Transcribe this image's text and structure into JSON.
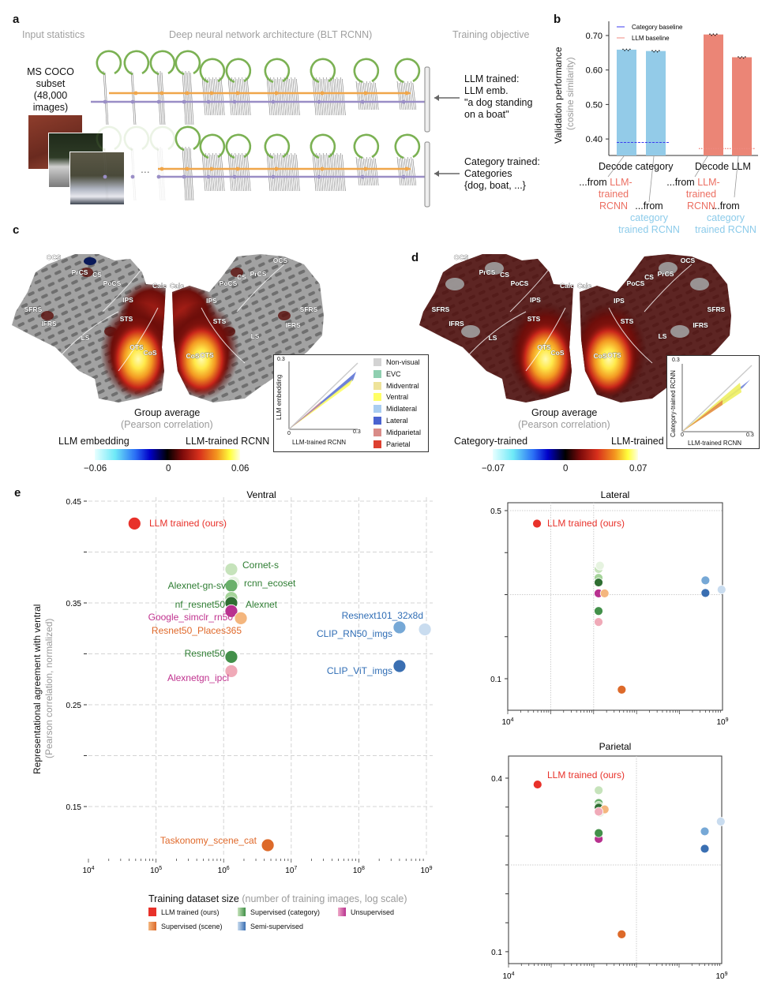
{
  "panel_labels": {
    "a": "a",
    "b": "b",
    "c": "c",
    "d": "d",
    "e": "e"
  },
  "panel_a": {
    "headers": [
      "Input statistics",
      "Deep neural network architecture (BLT RCNN)",
      "Training objective"
    ],
    "input_label": [
      "MS COCO",
      "subset",
      "(48,000",
      "images)"
    ],
    "ellipsis": "...",
    "objectives": [
      {
        "lines": [
          "LLM trained:",
          "LLM emb.",
          "\"a dog standing",
          "on a boat\""
        ]
      },
      {
        "lines": [
          "Category trained:",
          "Categories",
          "{dog, boat, ...}"
        ]
      }
    ],
    "colors": {
      "recurrent": "#7bb153",
      "topdown": "#f0a64a",
      "bottomup": "#9a8ec6"
    }
  },
  "panel_b": {
    "groups": [
      "Decode category",
      "Decode LLM"
    ],
    "annotations": [
      {
        "prefix": "...from",
        "lines": [
          "LLM-",
          "trained",
          "RCNN"
        ],
        "source": "llm"
      },
      {
        "prefix": "...from",
        "lines": [
          "category",
          "trained RCNN"
        ],
        "source": "category"
      },
      {
        "prefix": "...from",
        "lines": [
          "LLM-",
          "trained",
          "RCNN"
        ],
        "source": "llm"
      },
      {
        "prefix": "...from",
        "lines": [
          "category",
          "trained RCNN"
        ],
        "source": "category"
      }
    ]
  },
  "panel_c": {
    "title": "Group average",
    "subtitle": "(Pearson correlation)",
    "cbar_left": "LLM embedding",
    "cbar_right": "LLM-trained RCNN",
    "cbar_ticks": [
      "−0.06",
      "0",
      "0.06"
    ],
    "sulci": [
      "OCS",
      "PrCS",
      "CS",
      "PoCS",
      "Calc",
      "Calc",
      "IPS",
      "SFRS",
      "STS",
      "IFRS",
      "LS",
      "OTS",
      "CoS",
      "OCS",
      "PrCS",
      "CS",
      "PoCS",
      "IPS",
      "STS",
      "SFRS",
      "IFRS",
      "LS",
      "CoS",
      "OTS"
    ],
    "inset": {
      "ylabel": "LLM embedding",
      "xlabel": "LLM-trained RCNN",
      "tick_max": "0.3",
      "tick_zero": "0"
    },
    "roi_legend": [
      {
        "name": "Non-visual",
        "color": "#d3d3d3"
      },
      {
        "name": "EVC",
        "color": "#8fcfb0"
      },
      {
        "name": "Midventral",
        "color": "#eee39a"
      },
      {
        "name": "Ventral",
        "color": "#ffff66"
      },
      {
        "name": "Midlateral",
        "color": "#a9cdf1"
      },
      {
        "name": "Lateral",
        "color": "#4a63d0"
      },
      {
        "name": "Midparietal",
        "color": "#d98c88"
      },
      {
        "name": "Parietal",
        "color": "#dd4030"
      }
    ]
  },
  "panel_d": {
    "title": "Group average",
    "subtitle": "(Pearson correlation)",
    "cbar_left": "Category-trained",
    "cbar_right": "LLM-trained",
    "cbar_ticks": [
      "−0.07",
      "0",
      "0.07"
    ],
    "sulci": [
      "OCS",
      "PrCS",
      "CS",
      "PoCS",
      "Calc",
      "Calc",
      "IPS",
      "SFRS",
      "STS",
      "IFRS",
      "LS",
      "OTS",
      "CoS",
      "OCS",
      "PrCS",
      "CS",
      "PoCS",
      "IPS",
      "STS",
      "SFRS",
      "IFRS",
      "LS",
      "CoS",
      "OTS"
    ],
    "inset": {
      "ylabel": "Category-trained RCNN",
      "xlabel": "LLM-trained RCNN",
      "tick_max": "0.3",
      "tick_zero": "0"
    }
  },
  "panel_e": {
    "ylabel": "Representational agreement with ventral",
    "ylabel_sub": "(Pearson correlation, normalized)",
    "xlabel": "Training dataset size",
    "xlabel_sub": "(number of training images, log scale)",
    "legend": [
      {
        "name": "LLM trained (ours)",
        "colors": [
          "#e8312a",
          "#e8312a"
        ]
      },
      {
        "name": "Supervised (category)",
        "colors": [
          "#c6e3bb",
          "#3f8f46"
        ]
      },
      {
        "name": "Unsupervised",
        "colors": [
          "#f0aac8",
          "#b8318f"
        ]
      },
      {
        "name": "Supervised (scene)",
        "colors": [
          "#f4b67e",
          "#dd6a2a"
        ]
      },
      {
        "name": "Semi-supervised",
        "colors": [
          "#c9dcef",
          "#3a6fb2"
        ]
      }
    ]
  },
  "chart_data": [
    {
      "type": "bar",
      "panel": "b",
      "ylabel": "Validation performance",
      "ylabel_sub": "(cosine similarity)",
      "ylim": [
        0.352,
        0.72
      ],
      "yticks": [
        0.4,
        0.5,
        0.6,
        0.7
      ],
      "ytick_labels": [
        "0.40",
        "0.50",
        "0.60",
        "0.70"
      ],
      "bars": [
        {
          "group": "Decode category",
          "source": "LLM-trained RCNN",
          "value": 0.659,
          "color": "#93cbe8"
        },
        {
          "group": "Decode category",
          "source": "category trained RCNN",
          "value": 0.655,
          "color": "#93cbe8"
        },
        {
          "group": "Decode LLM",
          "source": "LLM-trained RCNN",
          "value": 0.703,
          "color": "#eb8576"
        },
        {
          "group": "Decode LLM",
          "source": "category trained RCNN",
          "value": 0.637,
          "color": "#eb8576"
        }
      ],
      "baselines": [
        {
          "name": "Category baseline",
          "value": 0.39,
          "color": "#3b3bf0",
          "group": "Decode category"
        },
        {
          "name": "LLM baseline",
          "value": 0.372,
          "color": "#f08a80",
          "group": "Decode LLM"
        }
      ]
    },
    {
      "type": "scatter",
      "panel": "e",
      "title": "Ventral",
      "xscale": "log",
      "xlim": [
        10000,
        1000000000
      ],
      "ylim": [
        0.1,
        0.45
      ],
      "yticks": [
        0.45,
        0.4,
        0.35,
        0.3,
        0.25,
        0.2,
        0.15
      ],
      "ytick_labels": {
        "0.45": "0.45",
        "0.35": "0.35",
        "0.25": "0.25",
        "0.15": "0.15"
      },
      "xtick_base": "10",
      "xtick_exponents": [
        "4",
        "5",
        "6",
        "7",
        "8",
        "9"
      ],
      "points": [
        {
          "name": "LLM trained (ours)",
          "x": 48000,
          "y": 0.428,
          "color": "#e8312a",
          "label_color": "#e8312a"
        },
        {
          "name": "Cornet-s",
          "x": 1300000,
          "y": 0.383,
          "color": "#c6e3bb",
          "label_color": "#2e7d32"
        },
        {
          "name": "rcnn_ecoset",
          "x": 1400000,
          "y": 0.37,
          "color": "#e6f3e0",
          "label_color": "#2e7d32"
        },
        {
          "name": "Alexnet-gn-sv",
          "x": 1300000,
          "y": 0.367,
          "color": "#6ab06a",
          "label_color": "#2e7d32"
        },
        {
          "name": "nf_resnet50",
          "x": 1300000,
          "y": 0.355,
          "color": "#a5d49a",
          "label_color": "#2e7d32"
        },
        {
          "name": "Alexnet",
          "x": 1300000,
          "y": 0.35,
          "color": "#2f6e32",
          "label_color": "#2e7d32"
        },
        {
          "name": "Google_simclr_rn50",
          "x": 1300000,
          "y": 0.342,
          "color": "#b8318f",
          "label_color": "#c0338f"
        },
        {
          "name": "Resnet50_Places365",
          "x": 1800000,
          "y": 0.335,
          "color": "#f4b67e",
          "label_color": "#e0692a"
        },
        {
          "name": "Resnext101_32x8d",
          "x": 950000000,
          "y": 0.324,
          "color": "#c9dcef",
          "label_color": "#2f6db5"
        },
        {
          "name": "CLIP_RN50_imgs",
          "x": 400000000,
          "y": 0.326,
          "color": "#76a8d6",
          "label_color": "#2f6db5"
        },
        {
          "name": "Resnet50",
          "x": 1300000,
          "y": 0.297,
          "color": "#43904a",
          "label_color": "#2e7d32"
        },
        {
          "name": "Alexnetgn_ipcl",
          "x": 1300000,
          "y": 0.283,
          "color": "#f0aab8",
          "label_color": "#c0338f"
        },
        {
          "name": "CLIP_ViT_imgs",
          "x": 400000000,
          "y": 0.288,
          "color": "#3a6fb2",
          "label_color": "#2f6db5"
        },
        {
          "name": "Taskonomy_scene_cat",
          "x": 4500000,
          "y": 0.112,
          "color": "#dd6a2a",
          "label_color": "#e0692a"
        }
      ]
    },
    {
      "type": "scatter",
      "panel": "e",
      "title": "Lateral",
      "xscale": "log",
      "xlim": [
        10000,
        1000000000
      ],
      "ylim": [
        0.025,
        0.52
      ],
      "yticks": [
        0.5,
        0.4,
        0.3,
        0.2,
        0.1
      ],
      "ytick_labels": {
        "0.5": "0.5",
        "0.1": "0.1"
      },
      "xtick_base": "10",
      "xtick_exponents": [
        "4",
        "9"
      ],
      "annotation": "LLM trained (ours)",
      "y_by_point": [
        0.469,
        0.361,
        0.369,
        0.333,
        0.34,
        0.329,
        0.303,
        0.303,
        0.312,
        0.334,
        0.261,
        0.235,
        0.304,
        0.074
      ]
    },
    {
      "type": "scatter",
      "panel": "e",
      "title": "Parietal",
      "xscale": "log",
      "xlim": [
        10000,
        1000000000
      ],
      "ylim": [
        0.08,
        0.44
      ],
      "yticks": [
        0.4,
        0.35,
        0.3,
        0.25,
        0.2,
        0.15,
        0.1
      ],
      "ytick_labels": {
        "0.4": "0.4",
        "0.1": "0.1"
      },
      "xtick_base": "10",
      "xtick_exponents": [
        "4",
        "9"
      ],
      "annotation": "LLM trained (ours)",
      "y_by_point": [
        0.389,
        0.379,
        0.34,
        0.357,
        0.352,
        0.349,
        0.295,
        0.346,
        0.325,
        0.308,
        0.305,
        0.342,
        0.278,
        0.13
      ]
    }
  ]
}
